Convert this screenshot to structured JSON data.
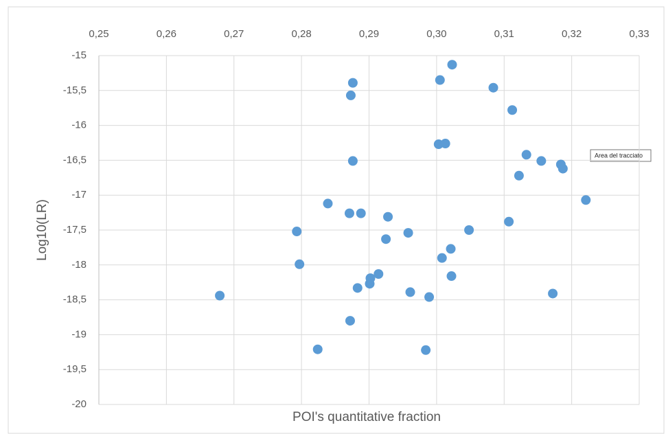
{
  "chart_data": {
    "type": "scatter",
    "xlabel": "POI's quantitative fraction",
    "ylabel": "Log10(LR)",
    "annotation": "Area del tracciato",
    "color": "#5b9bd5",
    "grid": true,
    "xlim": [
      0.25,
      0.33
    ],
    "ylim": [
      -20,
      -15
    ],
    "xticks": [
      {
        "value": 0.25,
        "label": "0,25"
      },
      {
        "value": 0.26,
        "label": "0,26"
      },
      {
        "value": 0.27,
        "label": "0,27"
      },
      {
        "value": 0.28,
        "label": "0,28"
      },
      {
        "value": 0.29,
        "label": "0,29"
      },
      {
        "value": 0.3,
        "label": "0,30"
      },
      {
        "value": 0.31,
        "label": "0,31"
      },
      {
        "value": 0.32,
        "label": "0,32"
      },
      {
        "value": 0.33,
        "label": "0,33"
      }
    ],
    "yticks": [
      -15,
      {
        "value": -15.5,
        "label": "-15,5"
      },
      -16,
      {
        "value": -16.5,
        "label": "-16,5"
      },
      -17,
      {
        "value": -17.5,
        "label": "-17,5"
      },
      -18,
      {
        "value": -18.5,
        "label": "-18,5"
      },
      -19,
      {
        "value": -19.5,
        "label": "-19,5"
      },
      -20
    ],
    "x": [
      0.3023,
      0.2876,
      0.3005,
      0.2873,
      0.3084,
      0.3112,
      0.3003,
      0.3013,
      0.3133,
      0.3155,
      0.3184,
      0.3187,
      0.2876,
      0.3122,
      0.3221,
      0.2839,
      0.2871,
      0.2888,
      0.2928,
      0.3107,
      0.3048,
      0.2793,
      0.2958,
      0.2925,
      0.3021,
      0.3008,
      0.2797,
      0.2914,
      0.2902,
      0.3022,
      0.2901,
      0.2883,
      0.2961,
      0.2989,
      0.3172,
      0.2679,
      0.2872,
      0.2824,
      0.2984
    ],
    "values": [
      -15.13,
      -15.39,
      -15.35,
      -15.57,
      -15.46,
      -15.78,
      -16.27,
      -16.26,
      -16.42,
      -16.51,
      -16.56,
      -16.62,
      -16.51,
      -16.72,
      -17.07,
      -17.12,
      -17.26,
      -17.26,
      -17.31,
      -17.38,
      -17.5,
      -17.52,
      -17.54,
      -17.63,
      -17.77,
      -17.9,
      -17.99,
      -18.13,
      -18.19,
      -18.16,
      -18.27,
      -18.33,
      -18.39,
      -18.46,
      -18.41,
      -18.44,
      -18.8,
      -19.21,
      -19.22
    ]
  }
}
